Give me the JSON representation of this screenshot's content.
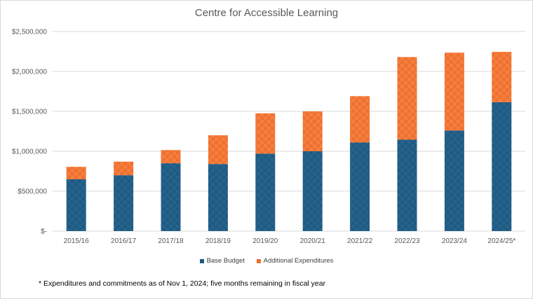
{
  "chart_data": {
    "type": "bar",
    "stacked": true,
    "title": "Centre for Accessible Learning",
    "categories": [
      "2015/16",
      "2016/17",
      "2017/18",
      "2018/19",
      "2019/20",
      "2020/21",
      "2021/22",
      "2022/23",
      "2023/24",
      "2024/25*"
    ],
    "series": [
      {
        "name": "Base Budget",
        "color": "#1f5a82",
        "values": [
          650000,
          700000,
          850000,
          840000,
          970000,
          1000000,
          1110000,
          1145000,
          1260000,
          1615000
        ]
      },
      {
        "name": "Additional Expenditures",
        "color": "#f0702f",
        "values": [
          155000,
          170000,
          165000,
          360000,
          505000,
          500000,
          580000,
          1035000,
          975000,
          630000
        ]
      }
    ],
    "y_ticks": [
      "$-",
      "$500,000",
      "$1,000,000",
      "$1,500,000",
      "$2,000,000",
      "$2,500,000"
    ],
    "ylim": [
      0,
      2500000
    ],
    "xlabel": "",
    "ylabel": "",
    "legend_position": "bottom",
    "grid": true
  },
  "footnote": "* Expenditures and commitments as of Nov 1, 2024; five months remaining in fiscal year"
}
